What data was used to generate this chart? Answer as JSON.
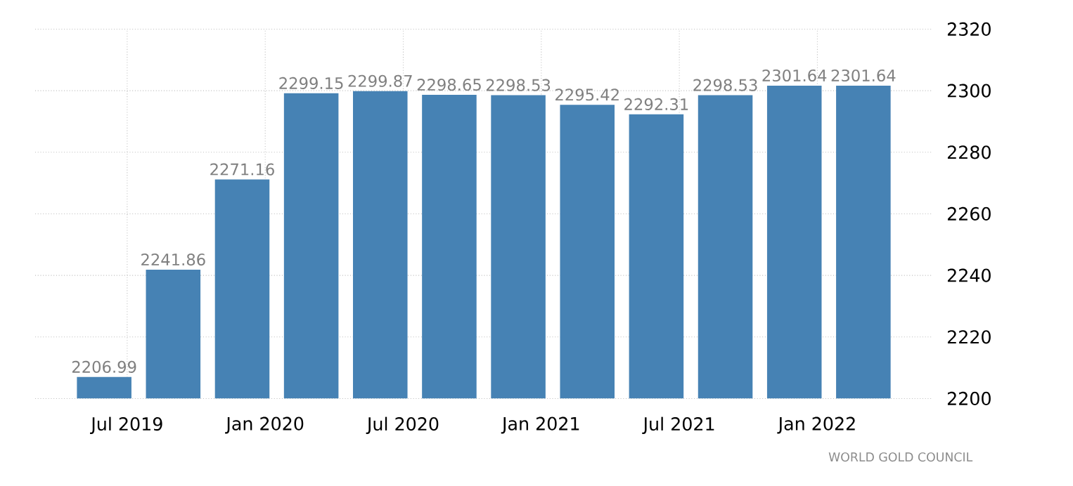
{
  "chart_data": {
    "type": "bar",
    "x": [
      "2019-06",
      "2019-09",
      "2019-12",
      "2020-03",
      "2020-06",
      "2020-09",
      "2020-12",
      "2021-03",
      "2021-06",
      "2021-09",
      "2021-12",
      "2022-03"
    ],
    "values": [
      2206.99,
      2241.86,
      2271.16,
      2299.15,
      2299.87,
      2298.65,
      2298.53,
      2295.42,
      2292.31,
      2298.53,
      2301.64,
      2301.64
    ],
    "color": "#4682b4",
    "data_labels": true,
    "xlim": [
      "2019-03",
      "2022-06"
    ],
    "xticks": [
      {
        "value": "2019-07",
        "label": "Jul 2019"
      },
      {
        "value": "2020-01",
        "label": "Jan 2020"
      },
      {
        "value": "2020-07",
        "label": "Jul 2020"
      },
      {
        "value": "2021-01",
        "label": "Jan 2021"
      },
      {
        "value": "2021-07",
        "label": "Jul 2021"
      },
      {
        "value": "2022-01",
        "label": "Jan 2022"
      }
    ],
    "ylim": [
      2200,
      2320
    ],
    "yticks": [
      2200,
      2220,
      2240,
      2260,
      2280,
      2300,
      2320
    ],
    "grid": true,
    "annotations": [
      "WORLD GOLD COUNCIL"
    ]
  }
}
